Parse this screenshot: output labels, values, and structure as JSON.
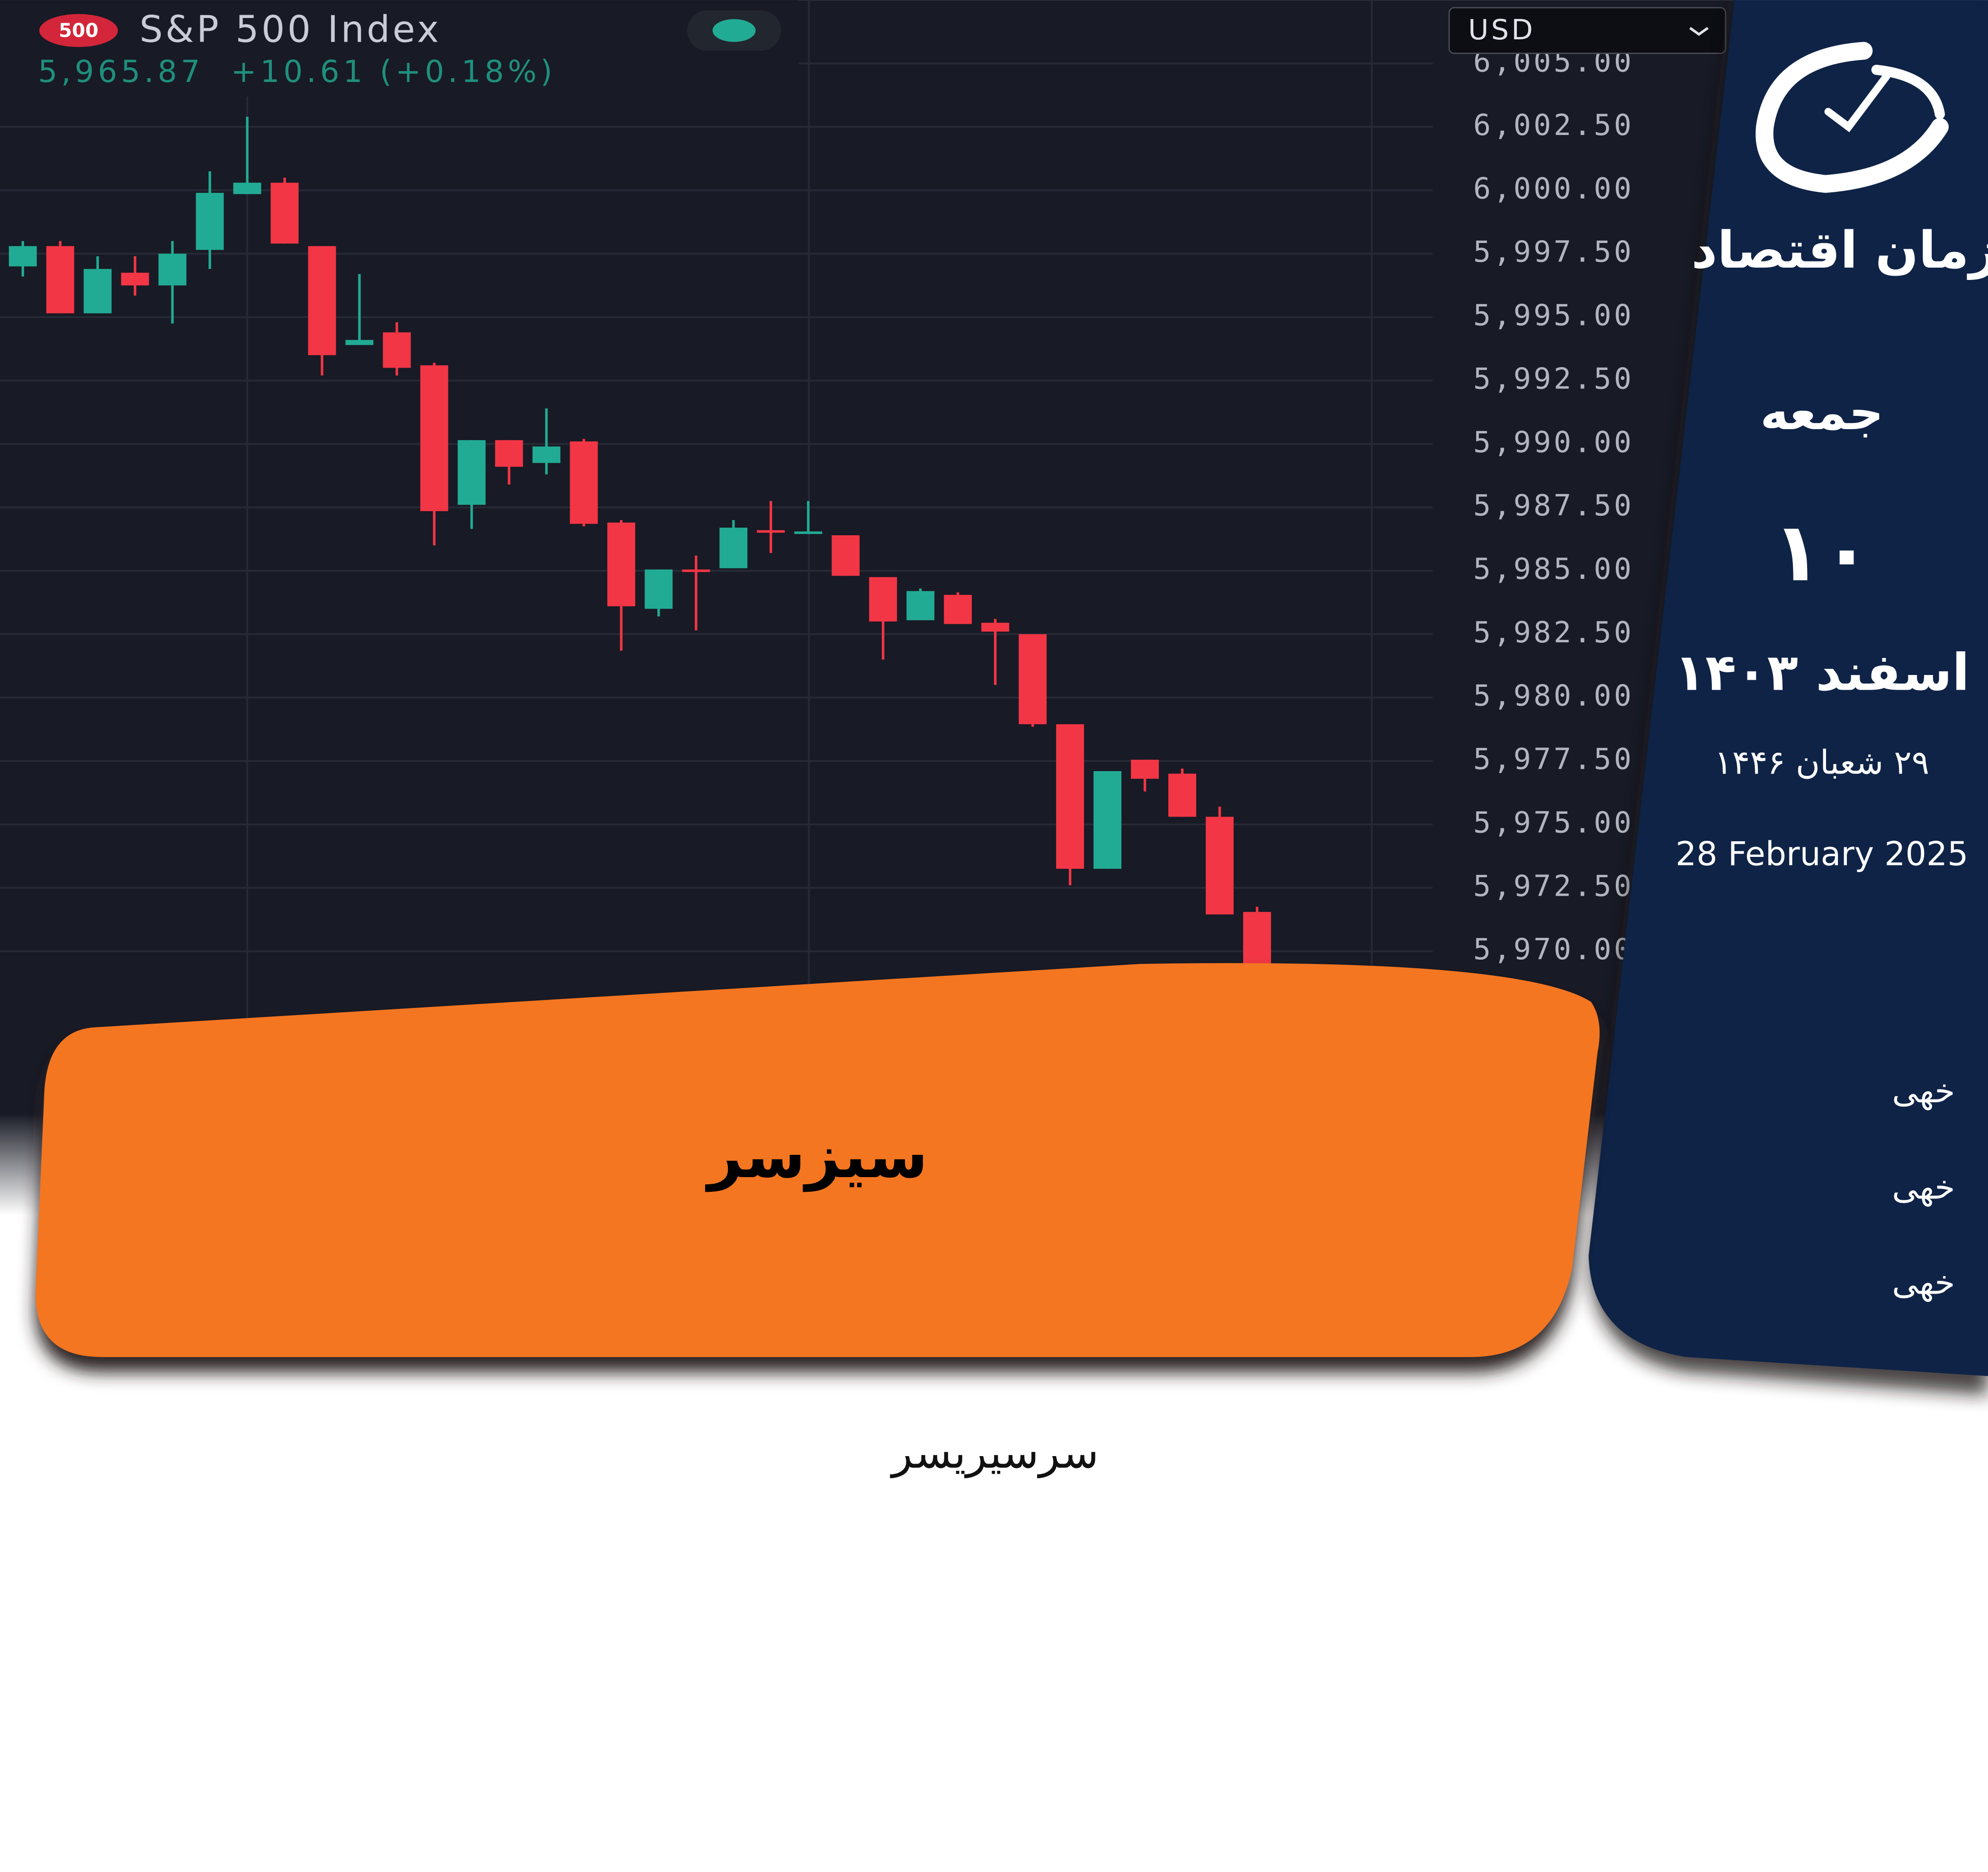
{
  "chart_data": {
    "type": "candlestick",
    "badge": "500",
    "title": "S&P 500 Index",
    "quote": "5,965.87  +10.61 (+0.18%)",
    "currency": "USD",
    "categories": [
      null,
      null,
      null,
      null,
      null,
      null,
      null,
      null,
      null,
      null,
      null,
      null,
      null,
      null,
      null,
      null,
      null,
      null,
      null,
      null,
      null,
      null,
      null,
      null,
      null,
      null,
      null,
      null,
      null,
      null,
      null,
      null,
      null,
      null
    ],
    "open": [
      5997,
      5997.8,
      5995.15,
      5996.75,
      5996.25,
      5997.65,
      5999.85,
      6000.3,
      5997.8,
      5993.9,
      5994.4,
      5993.1,
      5987.6,
      5990.15,
      5989.25,
      5990.1,
      5986.9,
      5983.5,
      5985.05,
      5985.1,
      5986.6,
      5986.45,
      5986.4,
      5984.75,
      5983.05,
      5984.05,
      5982.95,
      5982.5,
      5978.95,
      5973.25,
      5977.55,
      5977,
      5975.3,
      5971.55
    ],
    "high": [
      5998,
      5998,
      5997.4,
      5997.4,
      5998,
      6000.75,
      6002.9,
      6000.5,
      5997.8,
      5996.7,
      5994.8,
      5993.2,
      5990.15,
      5990.15,
      5991.4,
      5990.2,
      5987,
      5985.05,
      5985.6,
      5987,
      5987.75,
      5987.75,
      5986.4,
      5984.75,
      5984.3,
      5984.15,
      5983.1,
      5982.5,
      5978.95,
      5977.1,
      5977.55,
      5977.2,
      5975.7,
      5971.75
    ],
    "low": [
      5996.6,
      5995.15,
      5995.15,
      5995.85,
      5994.75,
      5996.9,
      5999.85,
      5997.9,
      5992.7,
      5993.9,
      5992.7,
      5986,
      5986.65,
      5988.4,
      5988.8,
      5986.75,
      5981.85,
      5983.2,
      5982.65,
      5985.1,
      5985.7,
      5986.45,
      5984.8,
      5981.5,
      5983.05,
      5982.9,
      5980.5,
      5978.85,
      5972.6,
      5973.25,
      5976.3,
      5975.3,
      5971.45,
      5965.5
    ],
    "close": [
      5997.8,
      5995.15,
      5996.9,
      5996.25,
      5997.5,
      5999.9,
      6000.3,
      5997.9,
      5993.5,
      5994.1,
      5993,
      5987.35,
      5990.15,
      5989.1,
      5989.9,
      5986.85,
      5983.6,
      5985.05,
      5984.95,
      5986.7,
      5986.5,
      5986.55,
      5984.8,
      5983,
      5984.2,
      5982.9,
      5982.6,
      5978.95,
      5973.25,
      5977.1,
      5976.8,
      5975.3,
      5971.45,
      5966
    ],
    "up_color": "#22ab94",
    "down_color": "#f23645",
    "ylim": [
      5963.5,
      6007.5
    ],
    "yticks": [
      {
        "value": 6005,
        "label": "6,005.00"
      },
      {
        "value": 6002.5,
        "label": "6,002.50"
      },
      {
        "value": 6000,
        "label": "6,000.00"
      },
      {
        "value": 5997.5,
        "label": "5,997.50"
      },
      {
        "value": 5995,
        "label": "5,995.00"
      },
      {
        "value": 5992.5,
        "label": "5,992.50"
      },
      {
        "value": 5990,
        "label": "5,990.00"
      },
      {
        "value": 5987.5,
        "label": "5,987.50"
      },
      {
        "value": 5985,
        "label": "5,985.00"
      },
      {
        "value": 5982.5,
        "label": "5,982.50"
      },
      {
        "value": 5980,
        "label": "5,980.00"
      },
      {
        "value": 5977.5,
        "label": "5,977.50"
      },
      {
        "value": 5975,
        "label": "5,975.00"
      },
      {
        "value": 5972.5,
        "label": "5,972.50"
      },
      {
        "value": 5970,
        "label": "5,970.00"
      }
    ],
    "grid": true
  },
  "brand": "زمان اقتصاد",
  "date": {
    "weekday": "جمعه",
    "day": "۱۰",
    "month_year": "اسفند ۱۴۰۳",
    "hijri": "۲۹ شعبان ۱۴۴۶",
    "gregorian": "28 February 2025"
  },
  "items": [
    "خهی",
    "خهی",
    "خهی"
  ],
  "headline": "سیزسر",
  "subheadline": "سرسیریسر"
}
